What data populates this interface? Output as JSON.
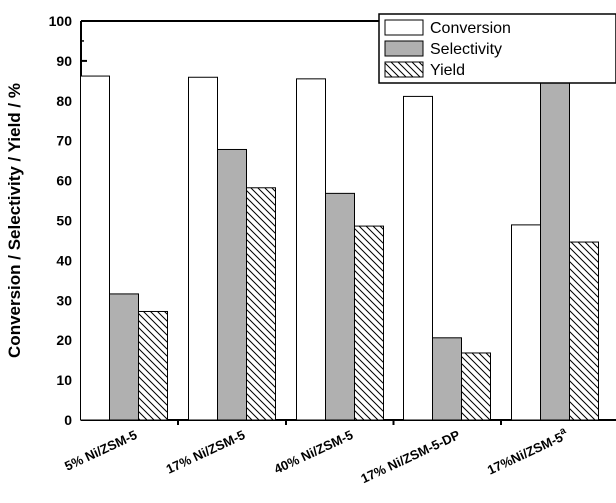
{
  "chart_data": {
    "type": "bar",
    "ylabel": "Conversion / Selectivity / Yield / %",
    "xlabel": "",
    "ylim": [
      0,
      100
    ],
    "yticks": [
      "0",
      "10",
      "20",
      "30",
      "40",
      "50",
      "60",
      "70",
      "80",
      "90",
      "100"
    ],
    "categories": [
      "5% Ni/ZSM-5",
      "17% Ni/ZSM-5",
      "40% Ni/ZSM-5",
      "17% Ni/ZSM-5-DP",
      "17%Ni/ZSM-5"
    ],
    "category_superscripts": [
      "",
      "",
      "",
      "",
      "a"
    ],
    "series": [
      {
        "name": "Conversion",
        "values": [
          86.2,
          85.9,
          85.5,
          81.1,
          48.9
        ],
        "fill": "#ffffff",
        "pattern": "none"
      },
      {
        "name": "Selectivity",
        "values": [
          31.6,
          67.8,
          56.8,
          20.6,
          91.2
        ],
        "fill": "#b0b0b0",
        "pattern": "none"
      },
      {
        "name": "Yield",
        "values": [
          27.2,
          58.2,
          48.6,
          16.8,
          44.6
        ],
        "fill": "#ffffff",
        "pattern": "hatch"
      }
    ],
    "legend_position": "top-right",
    "grid": false
  }
}
